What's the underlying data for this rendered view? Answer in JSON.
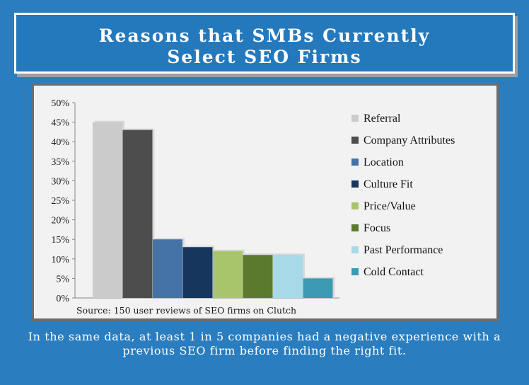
{
  "title": {
    "line1": "Reasons that SMBs Currently",
    "line2": "Select SEO Firms"
  },
  "source": "Source: 150 user reviews of SEO firms on Clutch",
  "footer": "In the same data, at least 1 in 5 companies had a negative experience with a previous SEO firm before finding the right fit.",
  "colors": {
    "background": "#2a7dbe",
    "title_box": "#2479bd",
    "plot_area": "#f2f2f2",
    "frame": "#6d6d6d"
  },
  "chart_data": {
    "type": "bar",
    "categories": [
      "Referral",
      "Company Attributes",
      "Location",
      "Culture Fit",
      "Price/Value",
      "Focus",
      "Past Performance",
      "Cold Contact"
    ],
    "values": [
      45,
      43,
      15,
      13,
      12,
      11,
      11,
      5
    ],
    "colors": [
      "#cbcbcb",
      "#4d4d4d",
      "#4572a7",
      "#17365d",
      "#a9c56b",
      "#5c7a2e",
      "#a8d9e8",
      "#3b9bb5"
    ],
    "yticks": [
      "0%",
      "5%",
      "10%",
      "15%",
      "20%",
      "25%",
      "30%",
      "35%",
      "40%",
      "45%",
      "50%"
    ],
    "ylim": [
      0,
      50
    ],
    "legend_position": "right",
    "grid": false
  }
}
